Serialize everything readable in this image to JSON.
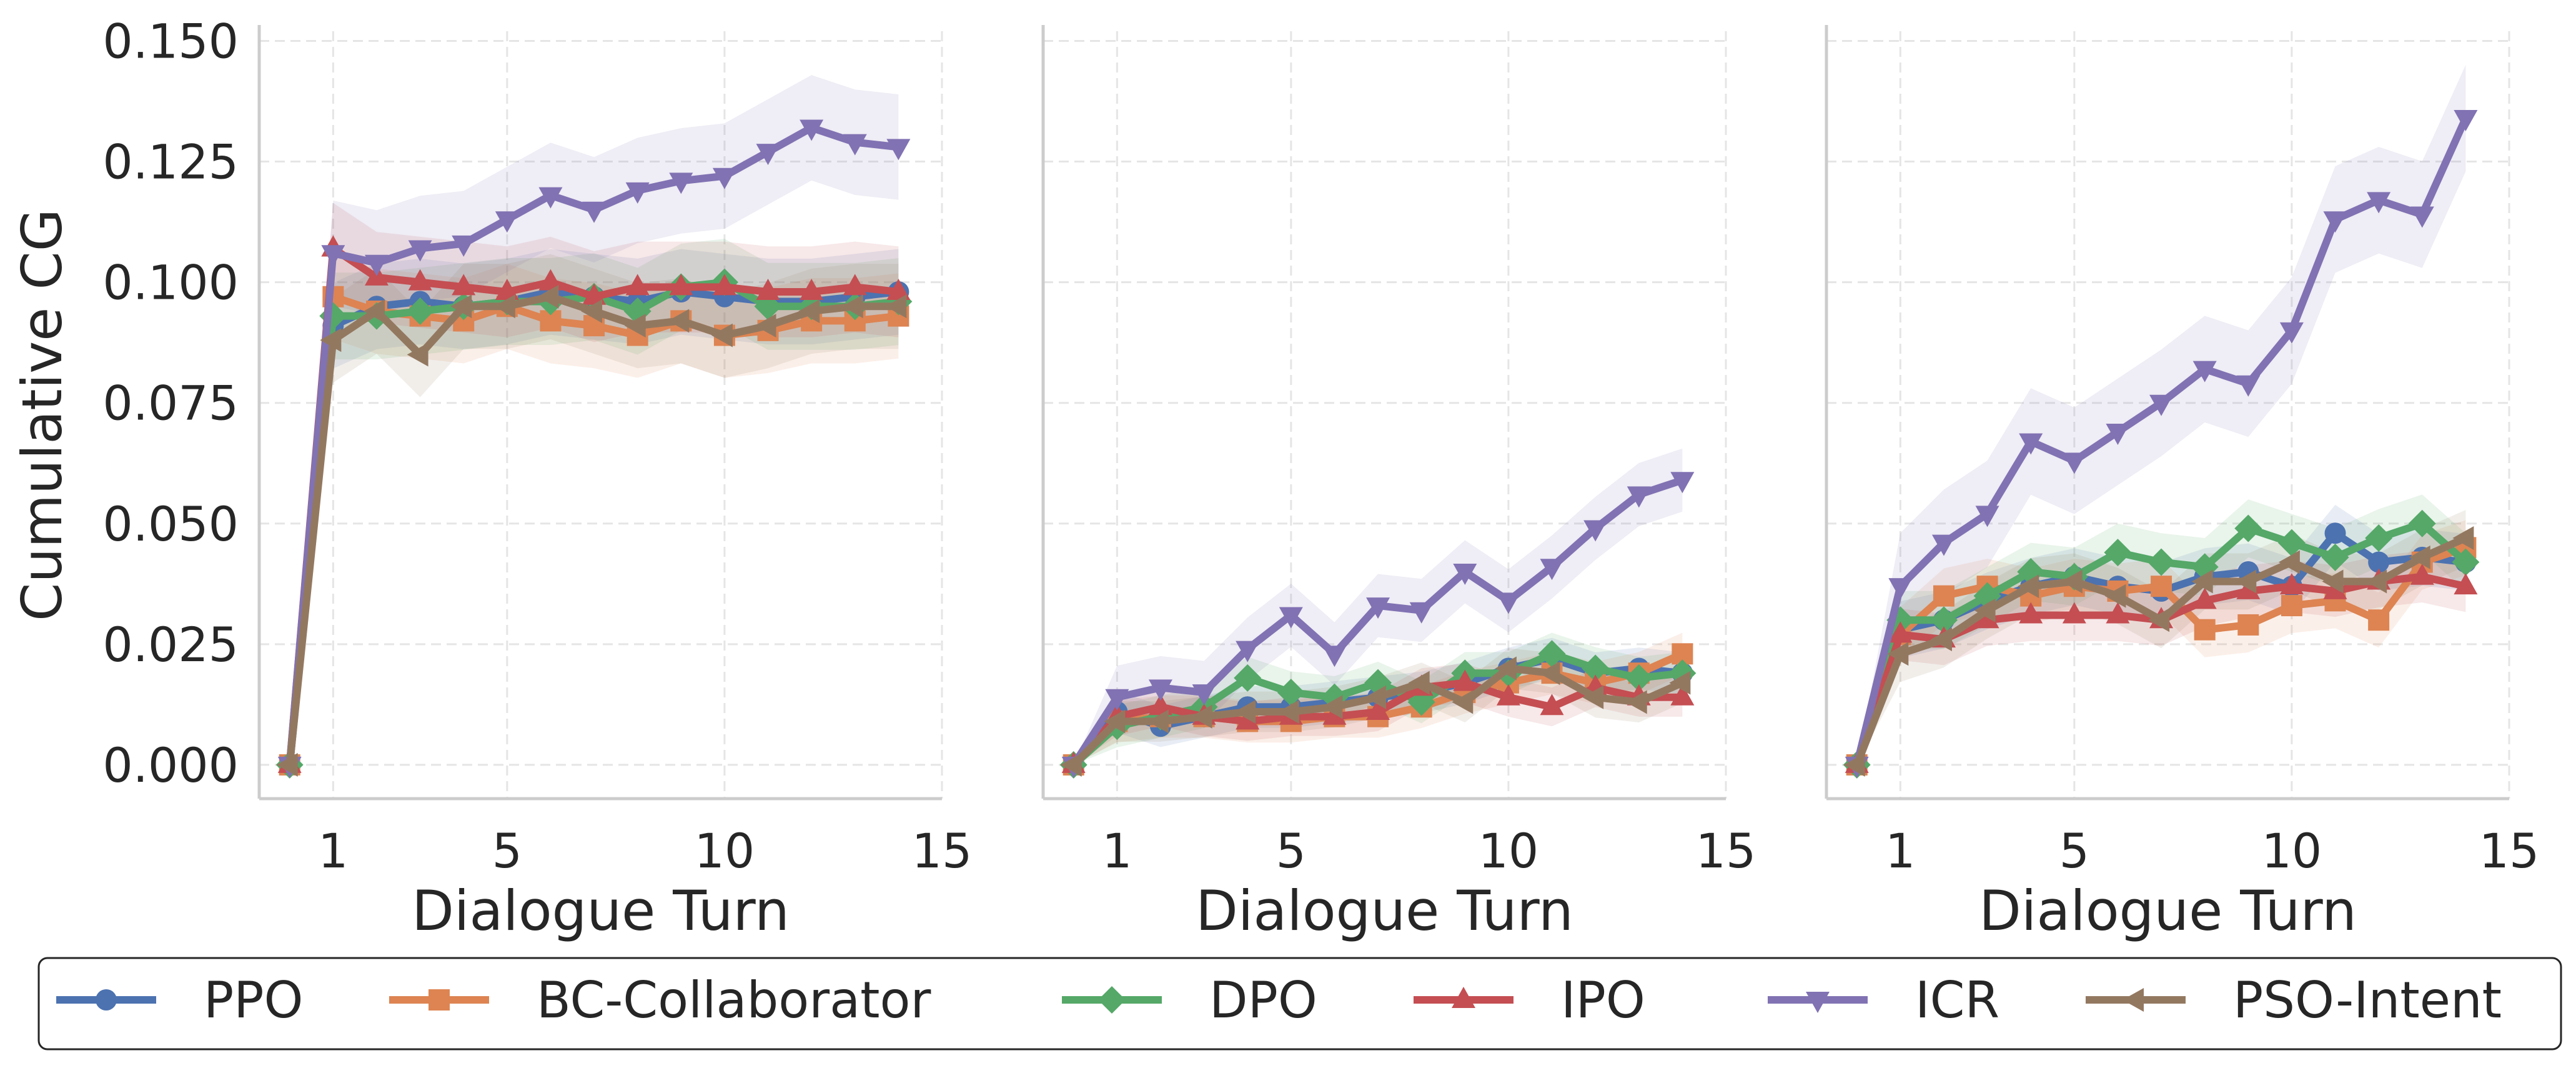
{
  "chart_data": [
    {
      "type": "line",
      "panel": 1,
      "xlabel": "Dialogue Turn",
      "ylabel": "Cumulative CG",
      "xlim": [
        -0.7,
        15
      ],
      "ylim": [
        -0.007,
        0.152
      ],
      "xticks": [
        1,
        5,
        10,
        15
      ],
      "yticks": [
        0,
        0.025,
        0.05,
        0.075,
        0.1,
        0.125,
        0.15
      ],
      "ytick_labels": [
        "0.000",
        "0.025",
        "0.050",
        "0.075",
        "0.100",
        "0.125",
        "0.150"
      ],
      "grid": true,
      "x": [
        0,
        1,
        2,
        3,
        4,
        5,
        6,
        7,
        8,
        9,
        10,
        11,
        12,
        13,
        14
      ],
      "series": [
        {
          "name": "PPO",
          "values": [
            0,
            0.091,
            0.095,
            0.096,
            0.095,
            0.096,
            0.098,
            0.097,
            0.096,
            0.098,
            0.097,
            0.096,
            0.096,
            0.097,
            0.098
          ]
        },
        {
          "name": "BC-Collaborator",
          "values": [
            0,
            0.097,
            0.094,
            0.093,
            0.092,
            0.095,
            0.092,
            0.091,
            0.089,
            0.092,
            0.089,
            0.09,
            0.092,
            0.092,
            0.093
          ]
        },
        {
          "name": "DPO",
          "values": [
            0,
            0.093,
            0.093,
            0.094,
            0.095,
            0.096,
            0.096,
            0.097,
            0.094,
            0.099,
            0.1,
            0.095,
            0.095,
            0.095,
            0.096
          ]
        },
        {
          "name": "IPO",
          "values": [
            0,
            0.107,
            0.101,
            0.1,
            0.099,
            0.098,
            0.1,
            0.097,
            0.099,
            0.099,
            0.099,
            0.098,
            0.098,
            0.099,
            0.098
          ]
        },
        {
          "name": "ICR",
          "values": [
            0,
            0.106,
            0.104,
            0.107,
            0.108,
            0.113,
            0.118,
            0.115,
            0.119,
            0.121,
            0.122,
            0.127,
            0.132,
            0.129,
            0.128
          ]
        },
        {
          "name": "PSO-Intent",
          "values": [
            0,
            0.088,
            0.094,
            0.085,
            0.095,
            0.095,
            0.097,
            0.094,
            0.091,
            0.092,
            0.089,
            0.091,
            0.094,
            0.095,
            0.095
          ]
        }
      ]
    },
    {
      "type": "line",
      "panel": 2,
      "xlabel": "Dialogue Turn",
      "xlim": [
        -0.7,
        15
      ],
      "ylim": [
        -0.007,
        0.152
      ],
      "xticks": [
        1,
        5,
        10,
        15
      ],
      "grid": true,
      "x": [
        0,
        1,
        2,
        3,
        4,
        5,
        6,
        7,
        8,
        9,
        10,
        11,
        12,
        13,
        14
      ],
      "series": [
        {
          "name": "PPO",
          "values": [
            0,
            0.011,
            0.008,
            0.01,
            0.012,
            0.012,
            0.013,
            0.014,
            0.015,
            0.017,
            0.02,
            0.022,
            0.019,
            0.02,
            0.019
          ]
        },
        {
          "name": "BC-Collaborator",
          "values": [
            0,
            0.009,
            0.01,
            0.01,
            0.009,
            0.009,
            0.01,
            0.01,
            0.012,
            0.015,
            0.017,
            0.019,
            0.017,
            0.019,
            0.023
          ]
        },
        {
          "name": "DPO",
          "values": [
            0,
            0.008,
            0.01,
            0.012,
            0.018,
            0.015,
            0.014,
            0.017,
            0.013,
            0.019,
            0.019,
            0.023,
            0.02,
            0.018,
            0.019
          ]
        },
        {
          "name": "IPO",
          "values": [
            0,
            0.01,
            0.012,
            0.01,
            0.009,
            0.01,
            0.01,
            0.011,
            0.016,
            0.017,
            0.014,
            0.012,
            0.016,
            0.014,
            0.014
          ]
        },
        {
          "name": "ICR",
          "values": [
            0,
            0.014,
            0.016,
            0.015,
            0.024,
            0.031,
            0.023,
            0.033,
            0.032,
            0.04,
            0.034,
            0.041,
            0.049,
            0.056,
            0.059
          ]
        },
        {
          "name": "PSO-Intent",
          "values": [
            0,
            0.009,
            0.009,
            0.01,
            0.011,
            0.011,
            0.012,
            0.014,
            0.017,
            0.013,
            0.02,
            0.019,
            0.014,
            0.013,
            0.017
          ]
        }
      ]
    },
    {
      "type": "line",
      "panel": 3,
      "xlabel": "Dialogue Turn",
      "xlim": [
        -0.7,
        15
      ],
      "ylim": [
        -0.007,
        0.152
      ],
      "xticks": [
        1,
        5,
        10,
        15
      ],
      "grid": true,
      "x": [
        0,
        1,
        2,
        3,
        4,
        5,
        6,
        7,
        8,
        9,
        10,
        11,
        12,
        13,
        14
      ],
      "series": [
        {
          "name": "PPO",
          "values": [
            0,
            0.028,
            0.03,
            0.034,
            0.037,
            0.039,
            0.037,
            0.036,
            0.039,
            0.04,
            0.037,
            0.048,
            0.042,
            0.043,
            0.042
          ]
        },
        {
          "name": "BC-Collaborator",
          "values": [
            0,
            0.027,
            0.035,
            0.037,
            0.035,
            0.037,
            0.036,
            0.037,
            0.028,
            0.029,
            0.033,
            0.034,
            0.03,
            0.042,
            0.045
          ]
        },
        {
          "name": "DPO",
          "values": [
            0,
            0.03,
            0.03,
            0.035,
            0.04,
            0.039,
            0.044,
            0.042,
            0.041,
            0.049,
            0.046,
            0.043,
            0.047,
            0.05,
            0.042
          ]
        },
        {
          "name": "IPO",
          "values": [
            0,
            0.027,
            0.026,
            0.03,
            0.031,
            0.031,
            0.031,
            0.03,
            0.034,
            0.036,
            0.037,
            0.036,
            0.038,
            0.039,
            0.037
          ]
        },
        {
          "name": "ICR",
          "values": [
            0,
            0.037,
            0.046,
            0.052,
            0.067,
            0.063,
            0.069,
            0.075,
            0.082,
            0.079,
            0.09,
            0.113,
            0.117,
            0.114,
            0.134
          ]
        },
        {
          "name": "PSO-Intent",
          "values": [
            0,
            0.023,
            0.026,
            0.032,
            0.037,
            0.038,
            0.035,
            0.03,
            0.038,
            0.038,
            0.042,
            0.038,
            0.038,
            0.043,
            0.047
          ]
        }
      ]
    }
  ],
  "legend": {
    "placement": "bottom-center",
    "items": [
      {
        "name": "PPO",
        "color": "#4c72b0",
        "marker": "circle"
      },
      {
        "name": "BC-Collaborator",
        "color": "#dd8452",
        "marker": "square"
      },
      {
        "name": "DPO",
        "color": "#55a868",
        "marker": "diamond"
      },
      {
        "name": "IPO",
        "color": "#c44e52",
        "marker": "triangle-up"
      },
      {
        "name": "ICR",
        "color": "#8172b3",
        "marker": "triangle-down"
      },
      {
        "name": "PSO-Intent",
        "color": "#937860",
        "marker": "triangle-left"
      }
    ]
  }
}
